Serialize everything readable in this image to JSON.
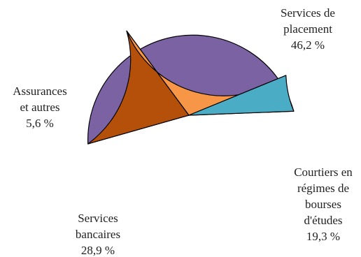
{
  "chart_data": {
    "type": "pie",
    "title": "",
    "legend": "none",
    "slices": [
      {
        "name": "Services de placement",
        "label_lines": [
          "Services de",
          "placement"
        ],
        "value": 46.2,
        "value_label": "46,2 %",
        "color": "#7b62a3"
      },
      {
        "name": "Courtiers en régimes de bourses d'études",
        "label_lines": [
          "Courtiers en",
          "régimes de",
          "bourses",
          "d'études"
        ],
        "value": 19.3,
        "value_label": "19,3 %",
        "color": "#b5500a"
      },
      {
        "name": "Services bancaires",
        "label_lines": [
          "Services",
          "bancaires"
        ],
        "value": 28.9,
        "value_label": "28,9 %",
        "color": "#f79646"
      },
      {
        "name": "Assurances et autres",
        "label_lines": [
          "Assurances",
          "et autres"
        ],
        "value": 5.6,
        "value_label": "5,6 %",
        "color": "#4bacc6"
      }
    ]
  }
}
